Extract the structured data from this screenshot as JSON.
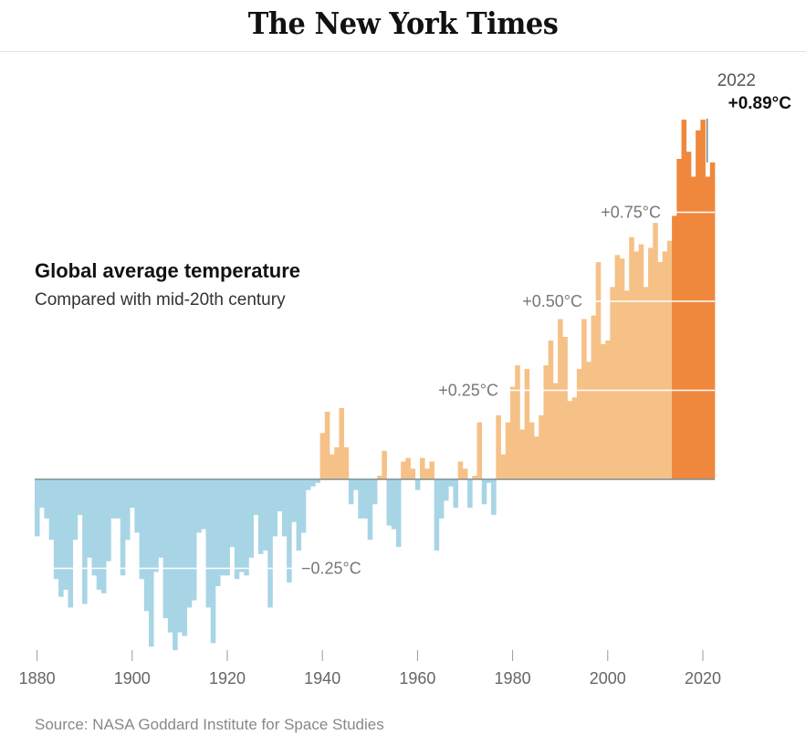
{
  "header": {
    "logo": "The New York Times"
  },
  "chart_data": {
    "type": "bar",
    "title": "Global average temperature",
    "subtitle": "Compared with mid-20th century",
    "unit": "°C",
    "xlim": [
      1880,
      2022
    ],
    "ylim": [
      -0.5,
      1.0
    ],
    "x_ticks": [
      "1880",
      "1900",
      "1920",
      "1940",
      "1960",
      "1980",
      "2000",
      "2020"
    ],
    "reference_lines": [
      {
        "value": -0.25,
        "label": "−0.25°C"
      },
      {
        "value": 0.25,
        "label": "+0.25°C"
      },
      {
        "value": 0.5,
        "label": "+0.50°C"
      },
      {
        "value": 0.75,
        "label": "+0.75°C"
      }
    ],
    "colors": {
      "below": "#a8d5e6",
      "above": "#f6c187",
      "recent": "#ef883d"
    },
    "recent_start_year": 2014,
    "years": [
      1880,
      1881,
      1882,
      1883,
      1884,
      1885,
      1886,
      1887,
      1888,
      1889,
      1890,
      1891,
      1892,
      1893,
      1894,
      1895,
      1896,
      1897,
      1898,
      1899,
      1900,
      1901,
      1902,
      1903,
      1904,
      1905,
      1906,
      1907,
      1908,
      1909,
      1910,
      1911,
      1912,
      1913,
      1914,
      1915,
      1916,
      1917,
      1918,
      1919,
      1920,
      1921,
      1922,
      1923,
      1924,
      1925,
      1926,
      1927,
      1928,
      1929,
      1930,
      1931,
      1932,
      1933,
      1934,
      1935,
      1936,
      1937,
      1938,
      1939,
      1940,
      1941,
      1942,
      1943,
      1944,
      1945,
      1946,
      1947,
      1948,
      1949,
      1950,
      1951,
      1952,
      1953,
      1954,
      1955,
      1956,
      1957,
      1958,
      1959,
      1960,
      1961,
      1962,
      1963,
      1964,
      1965,
      1966,
      1967,
      1968,
      1969,
      1970,
      1971,
      1972,
      1973,
      1974,
      1975,
      1976,
      1977,
      1978,
      1979,
      1980,
      1981,
      1982,
      1983,
      1984,
      1985,
      1986,
      1987,
      1988,
      1989,
      1990,
      1991,
      1992,
      1993,
      1994,
      1995,
      1996,
      1997,
      1998,
      1999,
      2000,
      2001,
      2002,
      2003,
      2004,
      2005,
      2006,
      2007,
      2008,
      2009,
      2010,
      2011,
      2012,
      2013,
      2014,
      2015,
      2016,
      2017,
      2018,
      2019,
      2020,
      2021,
      2022
    ],
    "values": [
      -0.16,
      -0.08,
      -0.11,
      -0.17,
      -0.28,
      -0.33,
      -0.31,
      -0.36,
      -0.17,
      -0.1,
      -0.35,
      -0.22,
      -0.27,
      -0.31,
      -0.32,
      -0.23,
      -0.11,
      -0.11,
      -0.27,
      -0.17,
      -0.08,
      -0.15,
      -0.28,
      -0.37,
      -0.47,
      -0.26,
      -0.22,
      -0.39,
      -0.43,
      -0.48,
      -0.43,
      -0.44,
      -0.36,
      -0.34,
      -0.15,
      -0.14,
      -0.36,
      -0.46,
      -0.3,
      -0.27,
      -0.27,
      -0.19,
      -0.28,
      -0.26,
      -0.27,
      -0.22,
      -0.1,
      -0.21,
      -0.2,
      -0.36,
      -0.16,
      -0.09,
      -0.16,
      -0.29,
      -0.12,
      -0.2,
      -0.15,
      -0.03,
      -0.02,
      -0.01,
      0.13,
      0.19,
      0.07,
      0.09,
      0.2,
      0.09,
      -0.07,
      -0.03,
      -0.11,
      -0.11,
      -0.17,
      -0.07,
      0.01,
      0.08,
      -0.13,
      -0.14,
      -0.19,
      0.05,
      0.06,
      0.03,
      -0.03,
      0.06,
      0.03,
      0.05,
      -0.2,
      -0.11,
      -0.06,
      -0.02,
      -0.08,
      0.05,
      0.03,
      -0.08,
      0.01,
      0.16,
      -0.07,
      -0.01,
      -0.1,
      0.18,
      0.07,
      0.16,
      0.26,
      0.32,
      0.14,
      0.31,
      0.16,
      0.12,
      0.18,
      0.32,
      0.39,
      0.27,
      0.45,
      0.4,
      0.22,
      0.23,
      0.31,
      0.45,
      0.33,
      0.46,
      0.61,
      0.38,
      0.39,
      0.54,
      0.63,
      0.62,
      0.53,
      0.68,
      0.64,
      0.66,
      0.54,
      0.65,
      0.72,
      0.61,
      0.64,
      0.67,
      0.74,
      0.9,
      1.01,
      0.92,
      0.85,
      0.98,
      1.01,
      0.85,
      0.89
    ],
    "annotation": {
      "year": "2022",
      "value": "+0.89°C"
    },
    "source": "Source: NASA Goddard Institute for Space Studies"
  }
}
